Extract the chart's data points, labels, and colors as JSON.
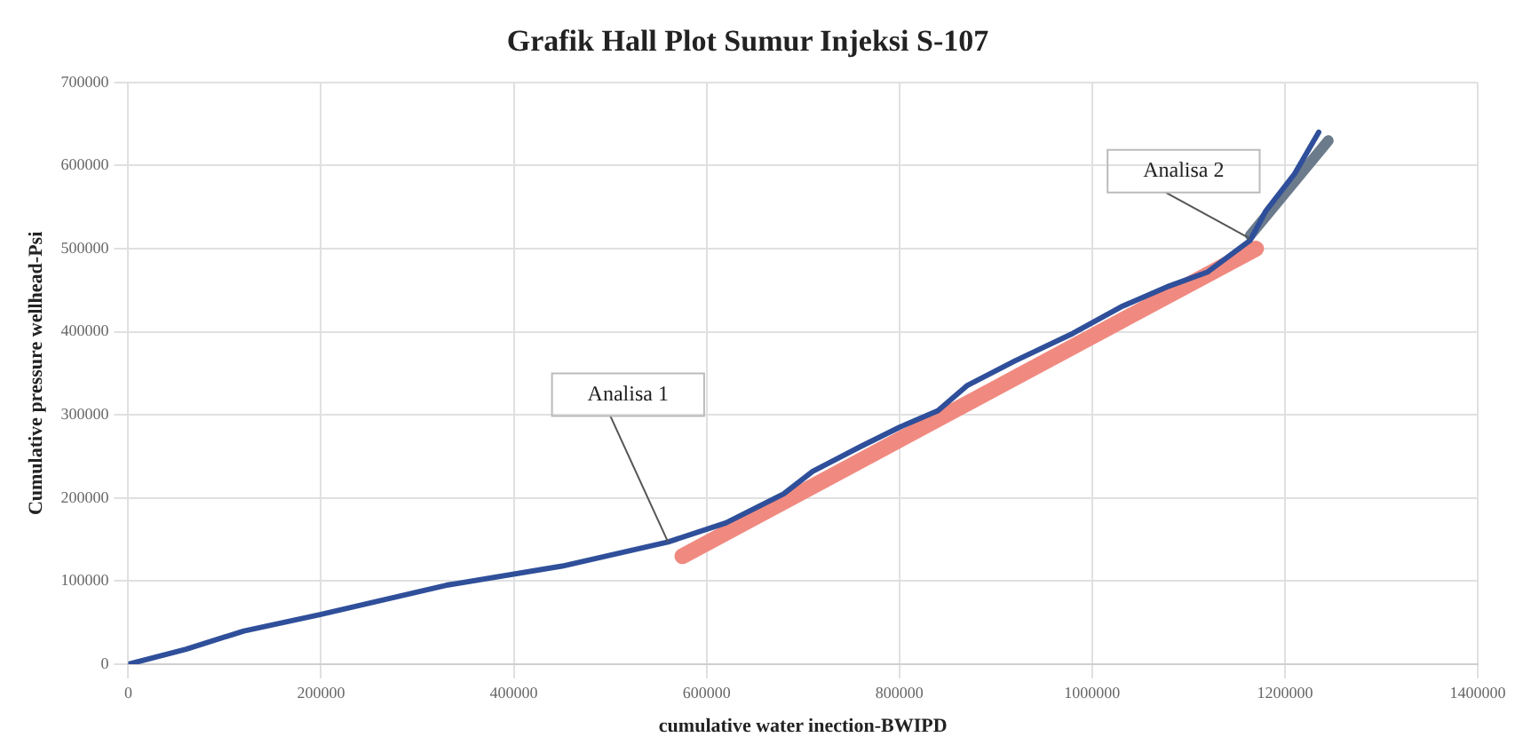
{
  "chart_data": {
    "type": "line",
    "title": "Grafik Hall Plot Sumur Injeksi S-107",
    "xlabel": "cumulative water inection-BWIPD",
    "ylabel": "Cumulative pressure wellhead-Psi",
    "series": [
      {
        "color": "#2f4f9a",
        "x": [
          0,
          60000,
          120000,
          200000,
          330000,
          450000,
          560000,
          620000,
          680000,
          710000,
          760000,
          800000,
          840000,
          870000,
          920000,
          980000,
          1030000,
          1080000,
          1120000,
          1164000,
          1180000,
          1210000,
          1235000
        ],
        "values": [
          0,
          18000,
          40000,
          60000,
          95000,
          118000,
          147000,
          170000,
          205000,
          232000,
          262000,
          285000,
          305000,
          335000,
          365000,
          398000,
          430000,
          455000,
          472000,
          510000,
          545000,
          590000,
          640000
        ]
      },
      {
        "color": "#f08a80",
        "x": [
          575000,
          1170000
        ],
        "values": [
          130000,
          500000
        ]
      },
      {
        "color": "#6b7b8c",
        "x": [
          1164000,
          1245000
        ],
        "values": [
          516000,
          630000
        ]
      }
    ],
    "xlim": [
      0,
      1400000
    ],
    "xticks": [
      0,
      200000,
      400000,
      600000,
      800000,
      1000000,
      1200000,
      1400000
    ],
    "ylim": [
      0,
      700000
    ],
    "yticks": [
      0,
      100000,
      200000,
      300000,
      400000,
      500000,
      600000,
      700000
    ],
    "grid": true,
    "legend": false,
    "marker": "none",
    "annotations": [
      {
        "text": "Analisa 1",
        "x": 560000,
        "y": 147000
      },
      {
        "text": "Analisa 2",
        "x": 1164000,
        "y": 512000
      }
    ]
  }
}
